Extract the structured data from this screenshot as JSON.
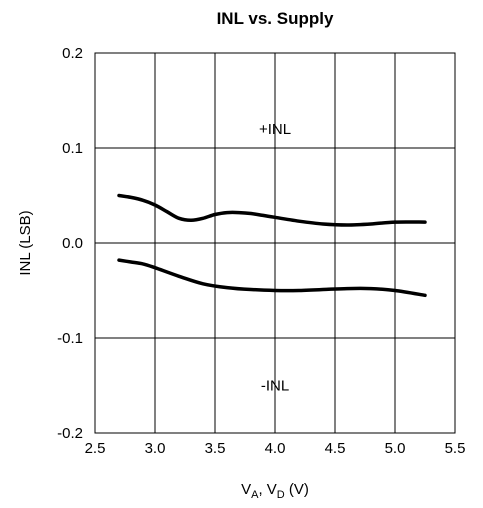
{
  "chart_data": {
    "type": "line",
    "title": "INL vs. Supply",
    "ylabel": "INL (LSB)",
    "xlabel": {
      "parts": [
        "V",
        "A",
        ", V",
        "D",
        " (V)"
      ]
    },
    "xlim": [
      2.5,
      5.5
    ],
    "ylim": [
      -0.2,
      0.2
    ],
    "xticks": [
      "2.5",
      "3.0",
      "3.5",
      "4.0",
      "4.5",
      "5.0",
      "5.5"
    ],
    "yticks": [
      "0.2",
      "0.1",
      "0.0",
      "-0.1",
      "-0.2"
    ],
    "grid": true,
    "annotations": [
      {
        "text": "+INL",
        "x": 4.0,
        "y": 0.12
      },
      {
        "text": "-INL",
        "x": 4.0,
        "y": -0.15
      }
    ],
    "series": [
      {
        "x": [
          2.7,
          2.8,
          2.9,
          3.0,
          3.1,
          3.2,
          3.3,
          3.4,
          3.5,
          3.6,
          3.7,
          3.8,
          3.9,
          4.0,
          4.2,
          4.4,
          4.6,
          4.8,
          5.0,
          5.25
        ],
        "values": [
          0.05,
          0.048,
          0.045,
          0.04,
          0.033,
          0.026,
          0.024,
          0.026,
          0.03,
          0.032,
          0.032,
          0.031,
          0.029,
          0.027,
          0.023,
          0.02,
          0.019,
          0.02,
          0.022,
          0.022
        ]
      },
      {
        "x": [
          2.7,
          2.8,
          2.9,
          3.0,
          3.2,
          3.4,
          3.6,
          3.8,
          4.0,
          4.2,
          4.4,
          4.6,
          4.8,
          5.0,
          5.25
        ],
        "values": [
          -0.018,
          -0.02,
          -0.022,
          -0.026,
          -0.035,
          -0.043,
          -0.047,
          -0.049,
          -0.05,
          -0.05,
          -0.049,
          -0.048,
          -0.048,
          -0.05,
          -0.055
        ]
      }
    ]
  }
}
